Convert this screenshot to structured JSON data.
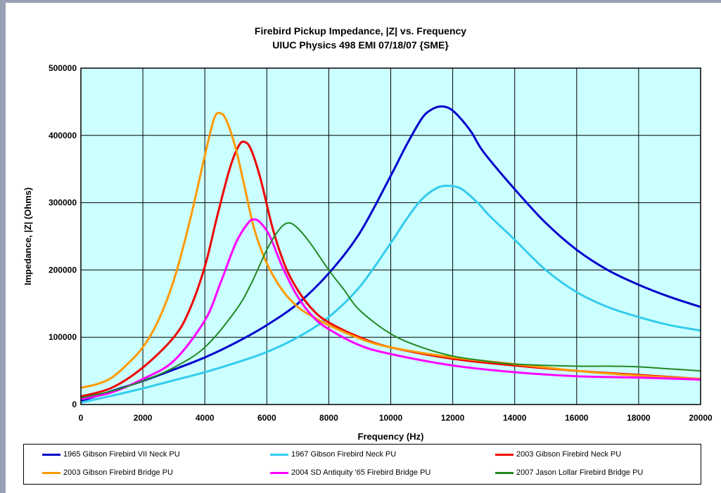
{
  "chart_data": {
    "type": "line",
    "title": "Firebird Pickup Impedance, |Z| vs. Frequency",
    "subtitle": "UIUC Physics 498 EMI   07/18/07 {SME}",
    "xlabel": "Frequency (Hz)",
    "ylabel": "Impedance, |Z| (Ohms)",
    "xlim": [
      0,
      20000
    ],
    "ylim": [
      0,
      500000
    ],
    "xticks": [
      "0",
      "2000",
      "4000",
      "6000",
      "8000",
      "10000",
      "12000",
      "14000",
      "16000",
      "18000",
      "20000"
    ],
    "yticks": [
      "0",
      "100000",
      "200000",
      "300000",
      "400000",
      "500000"
    ],
    "grid": true,
    "legend_position": "bottom",
    "plot_background": "#ccffff",
    "series": [
      {
        "name": "1965 Gibson Firebird VII Neck PU",
        "color": "#0000cc",
        "x": [
          0,
          1000,
          2000,
          3000,
          4000,
          5000,
          6000,
          7000,
          8000,
          9000,
          10000,
          10500,
          11000,
          11300,
          11600,
          11900,
          12200,
          12600,
          13000,
          14000,
          15000,
          16000,
          17000,
          18000,
          19000,
          20000
        ],
        "y": [
          5000,
          20000,
          35000,
          52000,
          70000,
          92000,
          118000,
          150000,
          195000,
          255000,
          340000,
          385000,
          425000,
          438000,
          443000,
          440000,
          428000,
          405000,
          375000,
          320000,
          270000,
          230000,
          200000,
          178000,
          160000,
          145000
        ]
      },
      {
        "name": "1967 Gibson Firebird Neck PU",
        "color": "#33ccee",
        "x": [
          0,
          1000,
          2000,
          3000,
          4000,
          5000,
          6000,
          7000,
          8000,
          9000,
          10000,
          10500,
          11000,
          11500,
          11900,
          12300,
          12800,
          13200,
          14000,
          15000,
          16000,
          17000,
          18000,
          19000,
          20000
        ],
        "y": [
          3000,
          13000,
          24000,
          36000,
          48000,
          62000,
          78000,
          100000,
          130000,
          175000,
          240000,
          275000,
          305000,
          322000,
          325000,
          320000,
          300000,
          280000,
          245000,
          200000,
          167000,
          145000,
          130000,
          118000,
          110000
        ]
      },
      {
        "name": "2003 Gibson Firebird Neck PU",
        "color": "#ee0000",
        "x": [
          0,
          1000,
          2000,
          3000,
          3500,
          4000,
          4400,
          4800,
          5100,
          5300,
          5500,
          5800,
          6200,
          6600,
          7000,
          7500,
          8000,
          9000,
          10000,
          12000,
          14000,
          16000,
          18000,
          20000
        ],
        "y": [
          12000,
          25000,
          55000,
          100000,
          140000,
          205000,
          280000,
          350000,
          385000,
          390000,
          378000,
          335000,
          260000,
          205000,
          170000,
          140000,
          122000,
          100000,
          85000,
          68000,
          58000,
          50000,
          44000,
          38000
        ]
      },
      {
        "name": "2003 Gibson Firebird Bridge PU",
        "color": "#ff9900",
        "x": [
          0,
          500,
          1000,
          1500,
          2000,
          2500,
          3000,
          3500,
          4000,
          4300,
          4500,
          4700,
          5000,
          5300,
          5600,
          6000,
          6500,
          7000,
          7500,
          8000,
          9000,
          10000,
          12000,
          14000,
          16000,
          18000,
          20000
        ],
        "y": [
          25000,
          30000,
          40000,
          60000,
          85000,
          125000,
          185000,
          270000,
          370000,
          425000,
          433000,
          422000,
          380000,
          320000,
          260000,
          210000,
          170000,
          145000,
          130000,
          118000,
          98000,
          85000,
          70000,
          60000,
          50000,
          43000,
          38000
        ]
      },
      {
        "name": "2004 SD Antiquity '65 Firebird Bridge PU",
        "color": "#ff00ff",
        "x": [
          0,
          1000,
          2000,
          3000,
          4000,
          4500,
          5000,
          5400,
          5600,
          5800,
          6100,
          6500,
          7000,
          7500,
          8000,
          9000,
          10000,
          12000,
          14000,
          16000,
          18000,
          20000
        ],
        "y": [
          8000,
          18000,
          38000,
          65000,
          125000,
          180000,
          240000,
          270000,
          275000,
          270000,
          250000,
          205000,
          160000,
          130000,
          112000,
          88000,
          75000,
          58000,
          48000,
          42000,
          40000,
          37000
        ]
      },
      {
        "name": "2007 Jason Lollar Firebird Bridge PU",
        "color": "#228822",
        "x": [
          0,
          1000,
          2000,
          3000,
          4000,
          5000,
          5500,
          6000,
          6400,
          6700,
          7000,
          7400,
          8000,
          8500,
          9000,
          10000,
          11000,
          12000,
          13000,
          14000,
          16000,
          17000,
          18000,
          19000,
          20000
        ],
        "y": [
          10000,
          20000,
          35000,
          55000,
          85000,
          140000,
          180000,
          230000,
          260000,
          270000,
          262000,
          240000,
          200000,
          170000,
          140000,
          105000,
          85000,
          72000,
          65000,
          60000,
          57000,
          57000,
          56000,
          53000,
          50000
        ]
      }
    ]
  }
}
